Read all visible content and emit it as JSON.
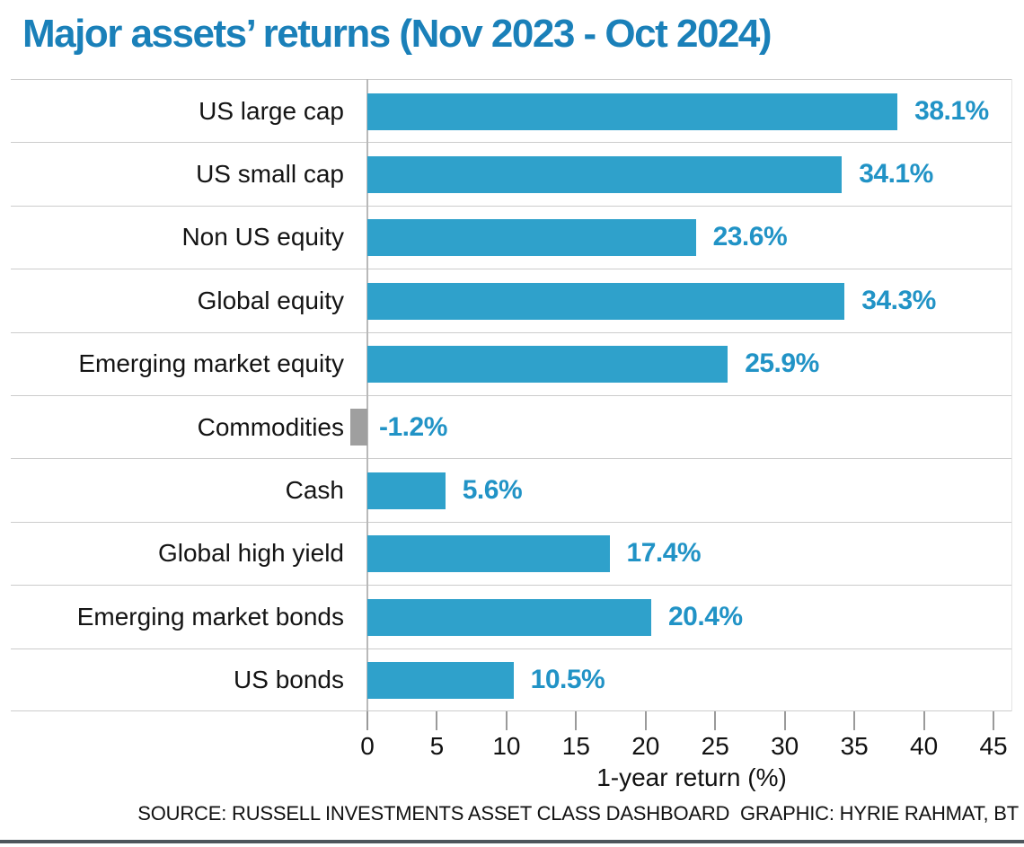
{
  "chart_data": {
    "type": "bar",
    "orientation": "horizontal",
    "title": "Major assets’ returns (Nov 2023 - Oct 2024)",
    "categories": [
      "US large cap",
      "US small cap",
      "Non US equity",
      "Global equity",
      "Emerging market equity",
      "Commodities",
      "Cash",
      "Global high yield",
      "Emerging market bonds",
      "US bonds"
    ],
    "values": [
      38.1,
      34.1,
      23.6,
      34.3,
      25.9,
      -1.2,
      5.6,
      17.4,
      20.4,
      10.5
    ],
    "value_labels": [
      "38.1%",
      "34.1%",
      "23.6%",
      "34.3%",
      "25.9%",
      "-1.2%",
      "5.6%",
      "17.4%",
      "20.4%",
      "10.5%"
    ],
    "xlabel": "1-year return (%)",
    "xlim": [
      0,
      45
    ],
    "xticks": [
      0,
      5,
      10,
      15,
      20,
      25,
      30,
      35,
      40,
      45
    ],
    "grid": "horizontal-row-separators",
    "legend": "none",
    "colors": {
      "title": "#1a80b9",
      "bar": "#2fa1cb",
      "negative_bar": "#9f9f9f",
      "value_label": "#2193c6",
      "category_label": "#141414"
    }
  },
  "footer": {
    "source": "SOURCE: RUSSELL INVESTMENTS ASSET CLASS DASHBOARD  GRAPHIC: HYRIE RAHMAT, BT"
  }
}
